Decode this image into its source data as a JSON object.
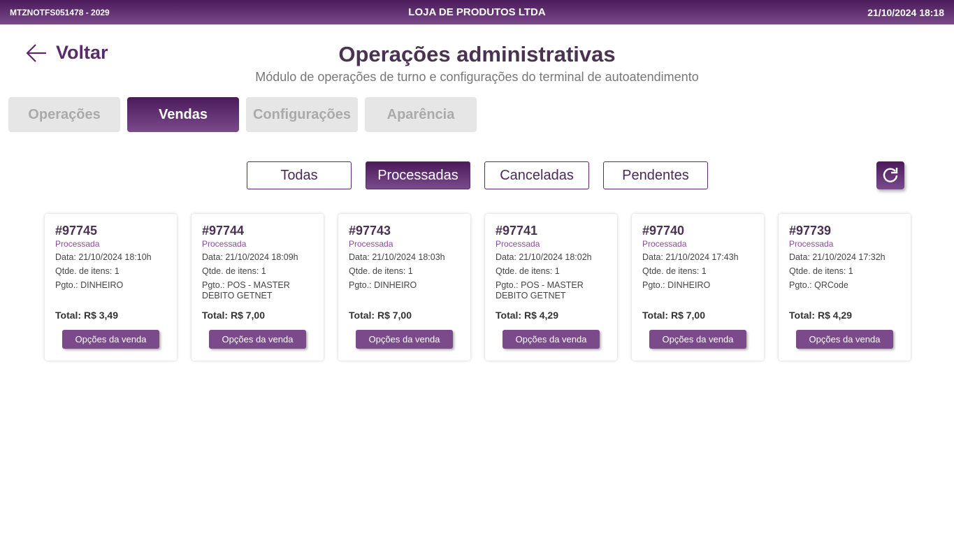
{
  "header": {
    "terminal": "MTZNOTFS051478 - 2029",
    "store": "LOJA DE PRODUTOS LTDA",
    "datetime": "21/10/2024 18:18"
  },
  "page": {
    "back_label": "Voltar",
    "title": "Operações administrativas",
    "subtitle": "Módulo de operações de turno e configurações do terminal de autoatendimento"
  },
  "tabs": [
    {
      "label": "Operações"
    },
    {
      "label": "Vendas",
      "active": true
    },
    {
      "label": "Configurações"
    },
    {
      "label": "Aparência"
    }
  ],
  "filters": [
    {
      "label": "Todas"
    },
    {
      "label": "Processadas",
      "active": true
    },
    {
      "label": "Canceladas"
    },
    {
      "label": "Pendentes"
    }
  ],
  "refresh_icon": "refresh-icon",
  "sales": [
    {
      "id": "#97745",
      "status": "Processada",
      "date": "Data: 21/10/2024 18:10h",
      "qty": "Qtde. de itens: 1",
      "pay": "Pgto.: DINHEIRO",
      "total": "Total: R$ 3,49",
      "button": "Opções da venda"
    },
    {
      "id": "#97744",
      "status": "Processada",
      "date": "Data: 21/10/2024 18:09h",
      "qty": "Qtde. de itens: 1",
      "pay": "Pgto.: POS - MASTER DEBITO GETNET",
      "total": "Total: R$ 7,00",
      "button": "Opções da venda"
    },
    {
      "id": "#97743",
      "status": "Processada",
      "date": "Data: 21/10/2024 18:03h",
      "qty": "Qtde. de itens: 1",
      "pay": "Pgto.: DINHEIRO",
      "total": "Total: R$ 7,00",
      "button": "Opções da venda"
    },
    {
      "id": "#97741",
      "status": "Processada",
      "date": "Data: 21/10/2024 18:02h",
      "qty": "Qtde. de itens: 1",
      "pay": "Pgto.: POS - MASTER DEBITO GETNET",
      "total": "Total: R$ 4,29",
      "button": "Opções da venda"
    },
    {
      "id": "#97740",
      "status": "Processada",
      "date": "Data: 21/10/2024 17:43h",
      "qty": "Qtde. de itens: 1",
      "pay": "Pgto.: DINHEIRO",
      "total": "Total: R$ 7,00",
      "button": "Opções da venda"
    },
    {
      "id": "#97739",
      "status": "Processada",
      "date": "Data: 21/10/2024 17:32h",
      "qty": "Qtde. de itens: 1",
      "pay": "Pgto.: QRCode",
      "total": "Total: R$ 4,29",
      "button": "Opções da venda"
    }
  ],
  "colors": {
    "brand": "#5a2a6a",
    "button": "#7a4a8a",
    "status": "#8a4a9a"
  }
}
